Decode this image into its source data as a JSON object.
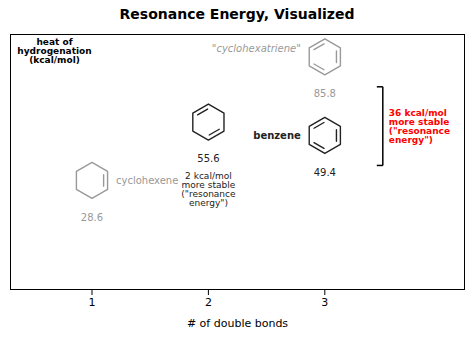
{
  "chart_data": {
    "type": "scatter",
    "title": "Resonance Energy, Visualized",
    "x_label": "# of double bonds",
    "y_label": "heat of\nhydrogenation\n(kcal/mol)",
    "x": [
      1,
      2,
      3,
      3
    ],
    "values": [
      28.6,
      55.6,
      49.4,
      85.8
    ],
    "colors": [
      "#999999",
      "#222222",
      "#222222",
      "#999999"
    ],
    "point_names": [
      "cyclohexene",
      null,
      "benzene",
      "\"cyclohexatriene\""
    ],
    "marker": "hexagon",
    "data_labels": true,
    "annotations": [
      {
        "text": "2 kcal/mol\nmore stable\n(\"resonance\nenergy\")",
        "color": "#222222"
      },
      {
        "text": "36 kcal/mol\nmore stable\n(\"resonance\nenergy\")",
        "color": "red"
      }
    ],
    "xlim": [
      0.3,
      4.2
    ],
    "ylim": [
      -8,
      110
    ],
    "xticks": [
      1,
      2,
      3
    ],
    "tick_labels": "x",
    "grid": false
  }
}
